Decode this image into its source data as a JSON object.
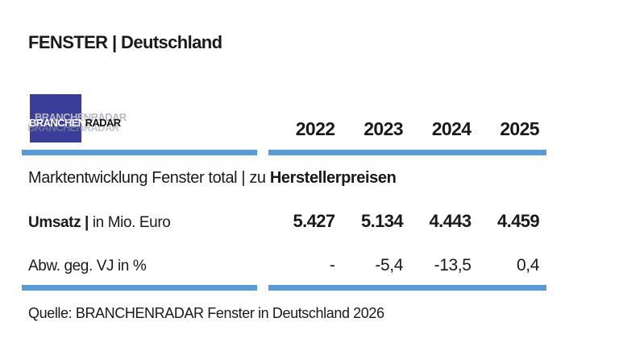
{
  "page": {
    "title": "FENSTER | Deutschland",
    "logo": {
      "name": "BRANCHENRADAR",
      "text_primary": "BRANCHEN",
      "text_secondary": "RADAR",
      "ghost_text": "BRANCHENRADAR"
    },
    "years": [
      "2022",
      "2023",
      "2024",
      "2025"
    ],
    "section_title": {
      "regular": "Marktentwicklung Fenster total | zu ",
      "bold": "Herstellerpreisen"
    },
    "rows": [
      {
        "label_bold": "Umsatz |",
        "label_rest": " in Mio. Euro",
        "values": [
          "5.427",
          "5.134",
          "4.443",
          "4.459"
        ]
      },
      {
        "label_bold": "",
        "label_rest": "Abw. geg. VJ in %",
        "values": [
          "-",
          "-5,4",
          "-13,5",
          "0,4"
        ]
      }
    ],
    "source": "Quelle: BRANCHENRADAR Fenster in Deutschland 2026",
    "colors": {
      "accent_bar": "#5b9bd5",
      "logo_blue": "#3b3e99",
      "text": "#1a1a1a"
    }
  },
  "chart_data": {
    "type": "table",
    "title": "FENSTER | Deutschland",
    "subtitle": "Marktentwicklung Fenster total | zu Herstellerpreisen",
    "categories": [
      "2022",
      "2023",
      "2024",
      "2025"
    ],
    "series": [
      {
        "name": "Umsatz | in Mio. Euro",
        "values": [
          5427,
          5134,
          4443,
          4459
        ]
      },
      {
        "name": "Abw. geg. VJ in %",
        "values": [
          null,
          -5.4,
          -13.5,
          0.4
        ]
      }
    ],
    "source": "Quelle: BRANCHENRADAR Fenster in Deutschland 2026"
  }
}
